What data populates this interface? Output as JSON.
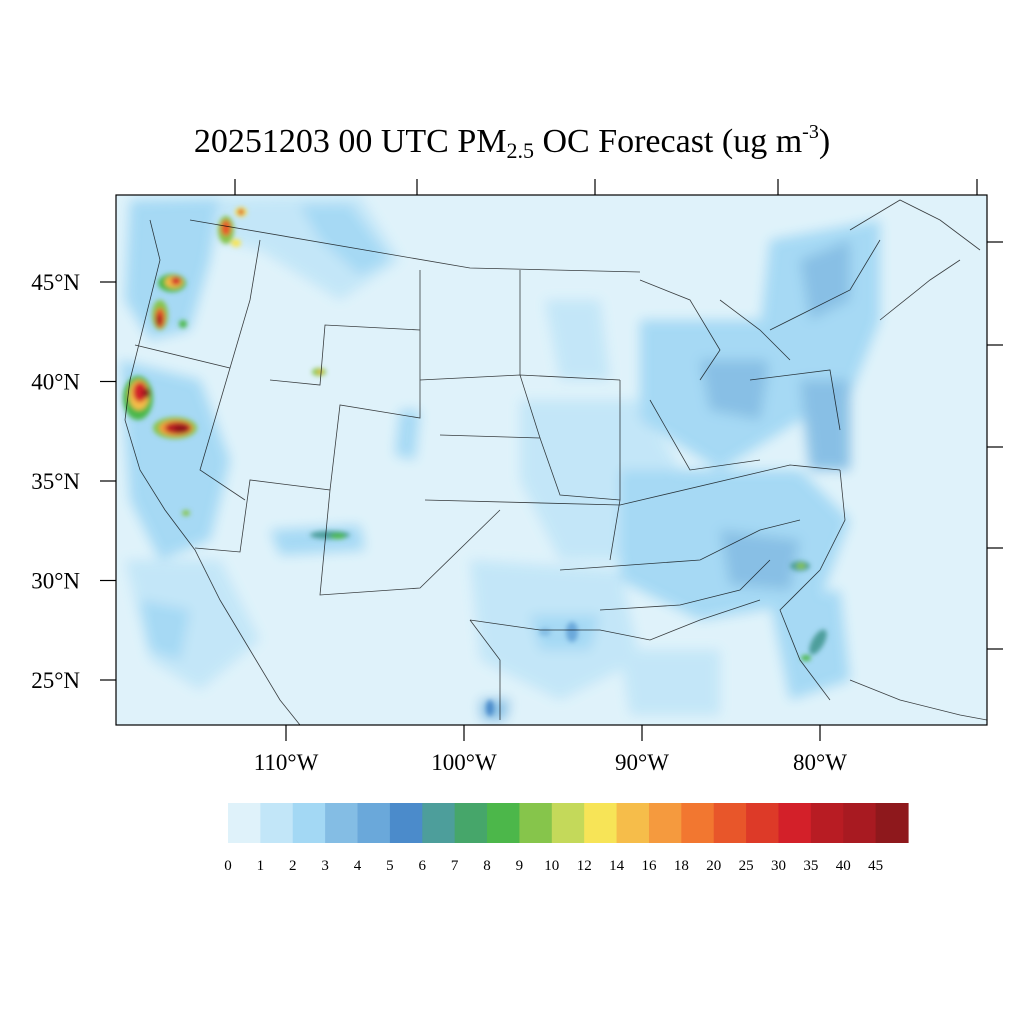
{
  "title": {
    "main_prefix": "20251203 00 UTC PM",
    "subscript": "2.5",
    "main_suffix": " OC Forecast (ug m",
    "superscript": "-3",
    "close": ")"
  },
  "map": {
    "lat_labels": [
      "45°N",
      "40°N",
      "35°N",
      "30°N",
      "25°N"
    ],
    "lat_values": [
      45,
      40,
      35,
      30,
      25
    ],
    "lon_labels": [
      "110°W",
      "100°W",
      "90°W",
      "80°W"
    ],
    "lon_values": [
      -110,
      -100,
      -90,
      -80
    ],
    "background_color": "#dff2fa"
  },
  "colorbar": {
    "labels": [
      "0",
      "1",
      "2",
      "3",
      "4",
      "5",
      "6",
      "7",
      "8",
      "9",
      "10",
      "12",
      "14",
      "16",
      "18",
      "20",
      "25",
      "30",
      "35",
      "40",
      "45"
    ],
    "colors": [
      "#dff2fa",
      "#c2e6f8",
      "#a3d8f4",
      "#84bde4",
      "#6aa8da",
      "#4b8bcb",
      "#4d9e9b",
      "#46a66a",
      "#4cb74a",
      "#86c54b",
      "#c4d95a",
      "#f7e457",
      "#f6bd4a",
      "#f59a3e",
      "#f27730",
      "#e8562a",
      "#dd3a28",
      "#d32029",
      "#b81c23",
      "#a81a21",
      "#8e181c"
    ]
  }
}
